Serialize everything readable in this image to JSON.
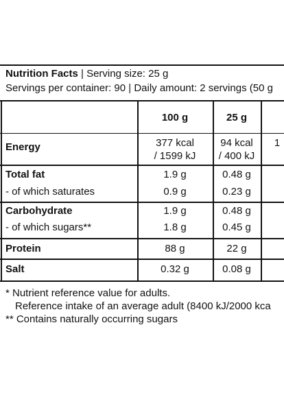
{
  "header": {
    "title": "Nutrition Facts",
    "serving": "| Serving size: 25 g",
    "servings_line": "Servings per container: 90 | Daily amount: 2 servings (50 g"
  },
  "table": {
    "columns": [
      "100 g",
      "25 g"
    ],
    "rows": [
      [
        "Energy",
        "377 kcal\n/ 1599 kJ",
        "94 kcal\n/ 400 kJ",
        "1"
      ],
      [
        "Total fat",
        "1.9 g",
        "0.48 g"
      ],
      [
        "- of which saturates",
        "0.9 g",
        "0.23 g"
      ],
      [
        "Carbohydrate",
        "1.9 g",
        "0.48 g"
      ],
      [
        "- of which sugars**",
        "1.8 g",
        "0.45 g"
      ],
      [
        "Protein",
        "88 g",
        "22 g"
      ],
      [
        "Salt",
        "0.32 g",
        "0.08 g"
      ]
    ]
  },
  "footnotes": [
    "* Nutrient reference value for adults.",
    "Reference intake of an average adult (8400 kJ/2000 kca",
    "** Contains naturally occurring sugars"
  ]
}
